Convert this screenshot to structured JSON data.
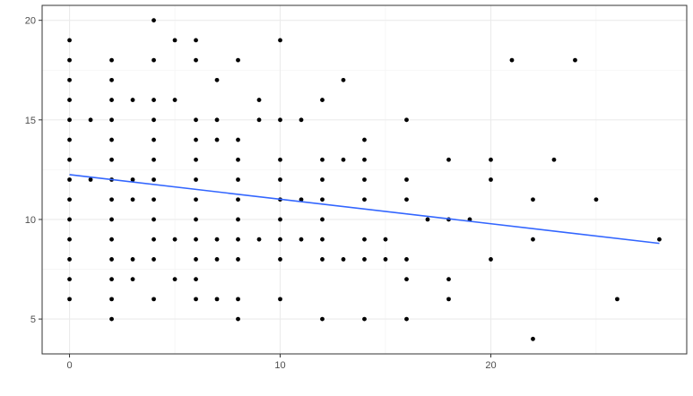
{
  "chart_data": {
    "type": "scatter",
    "title": "",
    "xlabel": "",
    "ylabel": "",
    "xlim": [
      -1.3,
      29.3
    ],
    "ylim": [
      3.25,
      20.75
    ],
    "x_ticks": [
      0,
      10,
      20
    ],
    "y_ticks": [
      5,
      10,
      15,
      20
    ],
    "x_minor": [
      5,
      15,
      25
    ],
    "y_minor": [
      7.5,
      12.5,
      17.5
    ],
    "grid": true,
    "theme": "bw",
    "point_color": "#000000",
    "line_color": "#3366FF",
    "points": [
      [
        0,
        19
      ],
      [
        0,
        18
      ],
      [
        0,
        17
      ],
      [
        0,
        16
      ],
      [
        0,
        15
      ],
      [
        0,
        14
      ],
      [
        0,
        13
      ],
      [
        0,
        12
      ],
      [
        0,
        11
      ],
      [
        0,
        10
      ],
      [
        0,
        9
      ],
      [
        0,
        8
      ],
      [
        0,
        7
      ],
      [
        0,
        6
      ],
      [
        1,
        15
      ],
      [
        1,
        12
      ],
      [
        2,
        18
      ],
      [
        2,
        17
      ],
      [
        2,
        16
      ],
      [
        2,
        15
      ],
      [
        2,
        14
      ],
      [
        2,
        13
      ],
      [
        2,
        12
      ],
      [
        2,
        11
      ],
      [
        2,
        10
      ],
      [
        2,
        9
      ],
      [
        2,
        8
      ],
      [
        2,
        7
      ],
      [
        2,
        6
      ],
      [
        2,
        5
      ],
      [
        3,
        16
      ],
      [
        3,
        12
      ],
      [
        3,
        11
      ],
      [
        3,
        8
      ],
      [
        3,
        7
      ],
      [
        4,
        20
      ],
      [
        4,
        18
      ],
      [
        4,
        16
      ],
      [
        4,
        15
      ],
      [
        4,
        14
      ],
      [
        4,
        13
      ],
      [
        4,
        12
      ],
      [
        4,
        11
      ],
      [
        4,
        10
      ],
      [
        4,
        9
      ],
      [
        4,
        8
      ],
      [
        4,
        6
      ],
      [
        5,
        19
      ],
      [
        5,
        16
      ],
      [
        5,
        9
      ],
      [
        5,
        7
      ],
      [
        6,
        19
      ],
      [
        6,
        18
      ],
      [
        6,
        15
      ],
      [
        6,
        14
      ],
      [
        6,
        13
      ],
      [
        6,
        12
      ],
      [
        6,
        11
      ],
      [
        6,
        10
      ],
      [
        6,
        9
      ],
      [
        6,
        8
      ],
      [
        6,
        7
      ],
      [
        6,
        6
      ],
      [
        7,
        17
      ],
      [
        7,
        15
      ],
      [
        7,
        14
      ],
      [
        7,
        9
      ],
      [
        7,
        8
      ],
      [
        7,
        6
      ],
      [
        8,
        18
      ],
      [
        8,
        14
      ],
      [
        8,
        13
      ],
      [
        8,
        12
      ],
      [
        8,
        11
      ],
      [
        8,
        10
      ],
      [
        8,
        9
      ],
      [
        8,
        8
      ],
      [
        8,
        6
      ],
      [
        8,
        5
      ],
      [
        9,
        16
      ],
      [
        9,
        15
      ],
      [
        9,
        9
      ],
      [
        10,
        19
      ],
      [
        10,
        15
      ],
      [
        10,
        13
      ],
      [
        10,
        12
      ],
      [
        10,
        11
      ],
      [
        10,
        10
      ],
      [
        10,
        9
      ],
      [
        10,
        8
      ],
      [
        10,
        6
      ],
      [
        11,
        15
      ],
      [
        11,
        11
      ],
      [
        11,
        9
      ],
      [
        12,
        16
      ],
      [
        12,
        13
      ],
      [
        12,
        12
      ],
      [
        12,
        11
      ],
      [
        12,
        10
      ],
      [
        12,
        9
      ],
      [
        12,
        8
      ],
      [
        12,
        5
      ],
      [
        13,
        17
      ],
      [
        13,
        13
      ],
      [
        13,
        8
      ],
      [
        14,
        14
      ],
      [
        14,
        13
      ],
      [
        14,
        12
      ],
      [
        14,
        11
      ],
      [
        14,
        9
      ],
      [
        14,
        8
      ],
      [
        14,
        5
      ],
      [
        15,
        9
      ],
      [
        15,
        8
      ],
      [
        16,
        15
      ],
      [
        16,
        12
      ],
      [
        16,
        11
      ],
      [
        16,
        8
      ],
      [
        16,
        7
      ],
      [
        16,
        5
      ],
      [
        17,
        10
      ],
      [
        18,
        13
      ],
      [
        18,
        10
      ],
      [
        18,
        7
      ],
      [
        18,
        6
      ],
      [
        19,
        10
      ],
      [
        20,
        13
      ],
      [
        20,
        12
      ],
      [
        20,
        8
      ],
      [
        21,
        18
      ],
      [
        22,
        11
      ],
      [
        22,
        9
      ],
      [
        22,
        4
      ],
      [
        23,
        13
      ],
      [
        24,
        18
      ],
      [
        25,
        11
      ],
      [
        26,
        6
      ],
      [
        28,
        9
      ]
    ],
    "trend_line": {
      "x": [
        0,
        28
      ],
      "y": [
        12.25,
        8.8
      ]
    }
  }
}
